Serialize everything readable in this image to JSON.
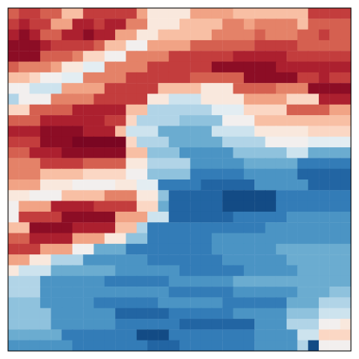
{
  "chart_data": {
    "type": "heatmap",
    "color": "RdBu_r",
    "color_range": [
      -1,
      1
    ],
    "tick_labels": false,
    "values": [
      [
        0.6,
        0.7,
        0.7,
        0.6,
        0.6,
        0.3,
        0.3,
        0.7,
        0.7,
        0.7,
        0.7,
        0.7,
        0.4,
        0.1,
        0.1,
        0.1,
        0.1,
        0.4,
        0.4,
        0.4,
        0.4,
        0.3,
        0.3,
        0.3,
        0.3,
        0.3,
        0.3,
        0.3,
        0.7,
        0.7,
        0.7,
        0.7
      ],
      [
        0.7,
        0.8,
        0.7,
        0.7,
        0.4,
        0.4,
        0.8,
        0.8,
        0.7,
        0.8,
        0.8,
        0.5,
        0.5,
        0.1,
        0.1,
        0.1,
        0.3,
        0.3,
        0.3,
        0.3,
        0.5,
        0.5,
        0.4,
        0.5,
        0.5,
        0.5,
        0.5,
        0.3,
        0.6,
        0.6,
        0.6,
        0.6
      ],
      [
        0.8,
        0.9,
        0.8,
        0.6,
        0.6,
        0.8,
        0.8,
        0.9,
        0.8,
        0.8,
        0.4,
        0.4,
        0.1,
        0.1,
        0.3,
        0.3,
        0.3,
        0.3,
        0.3,
        0.5,
        0.5,
        0.5,
        0.5,
        0.6,
        0.5,
        0.5,
        0.5,
        0.6,
        0.6,
        0.7,
        0.6,
        0.6
      ],
      [
        0.9,
        0.9,
        0.9,
        0.8,
        0.7,
        0.7,
        0.7,
        0.7,
        0.6,
        0.3,
        0.3,
        0.0,
        0.0,
        0.4,
        0.4,
        0.4,
        0.4,
        0.6,
        0.6,
        0.6,
        0.6,
        0.6,
        0.6,
        0.7,
        0.7,
        0.7,
        0.7,
        0.6,
        0.6,
        0.6,
        0.6,
        0.6
      ],
      [
        0.9,
        0.9,
        0.9,
        0.6,
        0.6,
        0.6,
        0.5,
        0.2,
        0.2,
        0.0,
        0.0,
        0.5,
        0.5,
        0.5,
        0.5,
        0.7,
        0.7,
        0.7,
        0.7,
        0.7,
        0.7,
        0.8,
        0.8,
        0.8,
        0.8,
        0.8,
        0.7,
        0.7,
        0.7,
        0.7,
        0.7,
        0.7
      ],
      [
        0.6,
        0.5,
        0.5,
        0.5,
        0.4,
        0.1,
        0.1,
        -0.1,
        -0.1,
        0.5,
        0.5,
        0.5,
        0.5,
        0.7,
        0.7,
        0.7,
        0.7,
        0.7,
        0.7,
        0.9,
        0.9,
        0.9,
        0.9,
        0.9,
        0.9,
        0.8,
        0.8,
        0.8,
        0.8,
        0.8,
        0.8,
        0.8
      ],
      [
        0.3,
        0.3,
        0.2,
        0.0,
        0.0,
        -0.1,
        -0.1,
        0.5,
        0.5,
        0.5,
        0.5,
        0.7,
        0.7,
        0.7,
        0.7,
        0.7,
        0.7,
        0.6,
        0.6,
        0.6,
        0.6,
        0.6,
        0.9,
        0.9,
        0.9,
        0.9,
        0.9,
        0.7,
        0.7,
        0.8,
        0.7,
        0.7
      ],
      [
        0.0,
        0.0,
        -0.2,
        -0.2,
        -0.2,
        0.4,
        0.4,
        0.4,
        0.4,
        0.7,
        0.7,
        0.7,
        0.7,
        0.7,
        0.3,
        0.3,
        0.3,
        0.3,
        0.1,
        0.1,
        0.1,
        0.6,
        0.6,
        0.6,
        0.6,
        0.5,
        0.5,
        0.5,
        0.9,
        0.9,
        0.9,
        0.9
      ],
      [
        -0.3,
        0.0,
        0.0,
        0.0,
        0.5,
        0.5,
        0.5,
        0.5,
        0.7,
        0.7,
        0.7,
        0.7,
        0.7,
        0.1,
        0.1,
        -0.2,
        -0.2,
        -0.2,
        0.1,
        0.1,
        0.1,
        0.1,
        0.4,
        0.4,
        0.4,
        0.4,
        0.2,
        0.2,
        0.2,
        0.8,
        0.8,
        0.8
      ],
      [
        0.2,
        0.2,
        0.6,
        0.6,
        0.6,
        0.6,
        0.8,
        0.8,
        0.8,
        0.8,
        0.8,
        0.3,
        0.3,
        -0.3,
        -0.3,
        -0.3,
        -0.3,
        -0.3,
        -0.3,
        -0.1,
        -0.1,
        -0.1,
        0.2,
        0.2,
        0.2,
        0.2,
        0.6,
        0.6,
        0.6,
        0.6,
        0.4,
        0.4
      ],
      [
        0.6,
        0.6,
        0.6,
        0.8,
        0.8,
        0.8,
        0.8,
        0.8,
        0.8,
        0.7,
        0.7,
        0.2,
        -0.3,
        -0.3,
        -0.3,
        -0.3,
        -0.4,
        -0.4,
        -0.4,
        -0.4,
        0.0,
        0.0,
        0.0,
        0.3,
        0.3,
        0.3,
        0.3,
        0.3,
        0.3,
        0.3,
        0.3,
        0.3
      ],
      [
        0.8,
        0.8,
        0.8,
        0.9,
        0.9,
        0.9,
        0.9,
        0.8,
        0.8,
        0.8,
        0.3,
        -0.2,
        -0.2,
        -0.2,
        -0.5,
        -0.5,
        -0.5,
        -0.5,
        -0.5,
        -0.2,
        -0.2,
        -0.2,
        -0.2,
        0.1,
        0.1,
        0.1,
        0.1,
        0.1,
        0.2,
        0.2,
        0.2,
        0.2
      ],
      [
        0.7,
        0.7,
        0.7,
        0.9,
        0.9,
        0.9,
        0.95,
        0.95,
        0.95,
        0.95,
        0.95,
        0.2,
        -0.3,
        -0.3,
        -0.3,
        -0.5,
        -0.5,
        -0.5,
        -0.5,
        -0.5,
        -0.3,
        -0.3,
        -0.3,
        -0.3,
        0.0,
        0.0,
        0.0,
        0.0,
        -0.1,
        -0.1,
        -0.1,
        -0.1
      ],
      [
        0.6,
        0.6,
        0.8,
        0.8,
        0.8,
        0.9,
        0.9,
        0.9,
        0.9,
        0.9,
        0.9,
        0.3,
        0.3,
        -0.4,
        -0.4,
        -0.4,
        -0.6,
        -0.6,
        -0.6,
        -0.6,
        -0.6,
        -0.4,
        -0.4,
        -0.4,
        -0.4,
        -0.4,
        -0.2,
        -0.2,
        -0.5,
        -0.5,
        -0.5,
        -0.5
      ],
      [
        0.5,
        0.5,
        0.5,
        0.7,
        0.7,
        0.7,
        0.7,
        0.6,
        0.6,
        0.6,
        0.6,
        0.1,
        0.1,
        -0.3,
        -0.3,
        -0.3,
        -0.3,
        -0.6,
        -0.6,
        -0.6,
        -0.6,
        -0.6,
        -0.5,
        -0.5,
        -0.5,
        -0.5,
        -0.5,
        -0.7,
        -0.7,
        -0.7,
        -0.7,
        -0.7
      ],
      [
        0.5,
        0.5,
        0.5,
        0.3,
        0.3,
        0.3,
        0.3,
        0.2,
        0.2,
        0.2,
        0.2,
        0.0,
        0.0,
        -0.4,
        -0.4,
        -0.4,
        -0.4,
        -0.7,
        -0.7,
        -0.7,
        -0.7,
        -0.7,
        -0.6,
        -0.6,
        -0.6,
        -0.6,
        -0.6,
        -0.8,
        -0.8,
        -0.8,
        -0.8,
        -0.8
      ],
      [
        0.4,
        0.4,
        0.4,
        0.1,
        0.1,
        0.1,
        0.0,
        0.0,
        0.0,
        0.0,
        0.1,
        0.1,
        -0.1,
        -0.1,
        -0.7,
        -0.7,
        -0.7,
        -0.7,
        -0.8,
        -0.8,
        -0.8,
        -0.8,
        -0.8,
        -0.6,
        -0.6,
        -0.6,
        -0.6,
        -0.6,
        -0.8,
        -0.8,
        -0.8,
        -0.8
      ],
      [
        0.1,
        0.1,
        0.0,
        0.0,
        0.0,
        0.3,
        0.3,
        0.3,
        0.3,
        0.5,
        0.5,
        0.5,
        0.1,
        0.1,
        -0.4,
        -0.8,
        -0.8,
        -0.8,
        -0.8,
        -0.8,
        -0.9,
        -0.9,
        -0.9,
        -0.9,
        -0.9,
        -0.7,
        -0.7,
        -0.7,
        -0.7,
        -0.7,
        -0.7,
        -0.7
      ],
      [
        0.0,
        0.4,
        0.4,
        0.4,
        0.8,
        0.8,
        0.8,
        0.8,
        0.7,
        0.7,
        0.7,
        0.7,
        0.2,
        0.2,
        -0.5,
        -0.8,
        -0.8,
        -0.8,
        -0.8,
        -0.8,
        -0.9,
        -0.9,
        -0.9,
        -0.9,
        -0.9,
        -0.7,
        -0.7,
        -0.7,
        -0.7,
        -0.7,
        -0.7,
        -0.7
      ],
      [
        0.0,
        0.7,
        0.7,
        0.7,
        0.7,
        0.9,
        0.9,
        0.9,
        0.9,
        0.9,
        0.4,
        0.4,
        0.4,
        -0.2,
        -0.2,
        -0.8,
        -0.8,
        -0.8,
        -0.8,
        -0.8,
        -0.8,
        -0.7,
        -0.7,
        -0.7,
        -0.7,
        -0.7,
        -0.6,
        -0.6,
        -0.6,
        -0.6,
        -0.6,
        -0.6
      ],
      [
        0.3,
        0.3,
        0.9,
        0.9,
        0.9,
        0.9,
        0.8,
        0.8,
        0.8,
        0.8,
        0.3,
        0.3,
        -0.3,
        -0.7,
        -0.7,
        -0.7,
        -0.7,
        -0.7,
        -0.7,
        -0.7,
        -0.7,
        -0.7,
        -0.7,
        -0.7,
        -0.6,
        -0.6,
        -0.6,
        -0.6,
        -0.6,
        -0.6,
        -0.6,
        -0.6
      ],
      [
        0.6,
        0.6,
        0.8,
        0.8,
        0.8,
        0.8,
        0.4,
        0.4,
        0.4,
        0.1,
        0.1,
        -0.4,
        -0.4,
        -0.7,
        -0.7,
        -0.7,
        -0.7,
        -0.7,
        -0.7,
        -0.6,
        -0.6,
        -0.6,
        -0.6,
        -0.6,
        -0.6,
        -0.6,
        -0.6,
        -0.6,
        -0.6,
        -0.6,
        -0.6,
        -0.6
      ],
      [
        0.7,
        0.7,
        0.7,
        0.4,
        0.4,
        0.4,
        0.0,
        0.0,
        -0.5,
        -0.5,
        -0.5,
        -0.7,
        -0.7,
        -0.7,
        -0.7,
        -0.7,
        -0.7,
        -0.7,
        -0.7,
        -0.6,
        -0.6,
        -0.6,
        -0.6,
        -0.6,
        -0.6,
        -0.5,
        -0.5,
        -0.5,
        -0.5,
        -0.5,
        -0.5,
        -0.5
      ],
      [
        0.4,
        0.4,
        0.1,
        0.1,
        -0.3,
        -0.3,
        -0.3,
        -0.6,
        -0.6,
        -0.6,
        -0.6,
        -0.6,
        -0.6,
        -0.7,
        -0.7,
        -0.7,
        -0.7,
        -0.7,
        -0.7,
        -0.7,
        -0.6,
        -0.6,
        -0.6,
        -0.6,
        -0.6,
        -0.6,
        -0.5,
        -0.5,
        -0.5,
        -0.5,
        -0.5,
        -0.5
      ],
      [
        0.1,
        -0.2,
        -0.2,
        -0.2,
        -0.5,
        -0.5,
        -0.5,
        -0.5,
        -0.5,
        -0.5,
        -0.6,
        -0.6,
        -0.6,
        -0.6,
        -0.6,
        -0.6,
        -0.7,
        -0.7,
        -0.7,
        -0.7,
        -0.7,
        -0.7,
        -0.6,
        -0.6,
        -0.6,
        -0.6,
        -0.6,
        -0.5,
        -0.5,
        -0.5,
        -0.5,
        -0.5
      ],
      [
        -0.3,
        -0.3,
        -0.3,
        -0.6,
        -0.6,
        -0.6,
        -0.6,
        -0.6,
        -0.6,
        -0.7,
        -0.7,
        -0.7,
        -0.7,
        -0.7,
        -0.7,
        -0.6,
        -0.6,
        -0.6,
        -0.6,
        -0.6,
        -0.6,
        -0.5,
        -0.5,
        -0.5,
        -0.5,
        -0.5,
        -0.5,
        -0.5,
        -0.5,
        -0.5,
        -0.5,
        -0.5
      ],
      [
        -0.3,
        -0.3,
        -0.3,
        -0.6,
        -0.6,
        -0.6,
        -0.6,
        -0.6,
        -0.6,
        -0.6,
        -0.6,
        -0.6,
        -0.6,
        -0.6,
        -0.6,
        -0.7,
        -0.7,
        -0.7,
        -0.7,
        -0.7,
        -0.7,
        -0.6,
        -0.6,
        -0.6,
        -0.6,
        -0.6,
        -0.6,
        -0.5,
        -0.5,
        -0.5,
        -0.4,
        -0.4
      ],
      [
        -0.4,
        -0.4,
        -0.4,
        -0.6,
        -0.6,
        -0.6,
        -0.6,
        -0.6,
        -0.7,
        -0.7,
        -0.7,
        -0.7,
        -0.7,
        -0.7,
        -0.6,
        -0.6,
        -0.6,
        -0.6,
        -0.6,
        -0.6,
        -0.7,
        -0.7,
        -0.7,
        -0.7,
        -0.7,
        -0.7,
        -0.5,
        -0.5,
        -0.5,
        -0.3,
        -0.3,
        -0.3
      ],
      [
        -0.4,
        -0.4,
        -0.4,
        -0.4,
        -0.6,
        -0.6,
        -0.6,
        -0.6,
        -0.6,
        -0.6,
        -0.8,
        -0.8,
        -0.8,
        -0.8,
        -0.8,
        -0.7,
        -0.7,
        -0.7,
        -0.7,
        -0.7,
        -0.7,
        -0.6,
        -0.6,
        -0.6,
        -0.6,
        -0.6,
        -0.4,
        -0.4,
        -0.4,
        -0.2,
        -0.2,
        -0.2
      ],
      [
        -0.4,
        -0.4,
        -0.4,
        -0.4,
        -0.6,
        -0.6,
        -0.6,
        -0.6,
        -0.6,
        -0.6,
        -0.7,
        -0.7,
        -0.7,
        -0.7,
        -0.7,
        -0.7,
        -0.8,
        -0.8,
        -0.8,
        -0.8,
        -0.8,
        -0.8,
        -0.8,
        -0.6,
        -0.6,
        -0.6,
        -0.3,
        -0.3,
        -0.3,
        0.0,
        0.0,
        0.1
      ],
      [
        -0.5,
        -0.5,
        -0.5,
        -0.5,
        -0.5,
        -0.7,
        -0.7,
        -0.7,
        -0.7,
        -0.7,
        -0.7,
        -0.7,
        -0.9,
        -0.9,
        -0.9,
        -0.7,
        -0.7,
        -0.7,
        -0.7,
        -0.7,
        -0.7,
        -0.7,
        -0.7,
        -0.6,
        -0.6,
        -0.6,
        -0.6,
        -0.2,
        -0.2,
        0.2,
        0.2,
        0.2
      ],
      [
        -0.6,
        -0.6,
        -0.6,
        -0.6,
        -0.6,
        -0.6,
        -0.7,
        -0.7,
        -0.7,
        -0.7,
        -0.7,
        -0.7,
        -0.7,
        -0.8,
        -0.8,
        -0.8,
        -0.7,
        -0.7,
        -0.7,
        -0.7,
        -0.7,
        -0.7,
        -0.7,
        -0.6,
        -0.6,
        -0.6,
        -0.6,
        -0.3,
        -0.9,
        0.0,
        0.0,
        0.0
      ]
    ]
  }
}
